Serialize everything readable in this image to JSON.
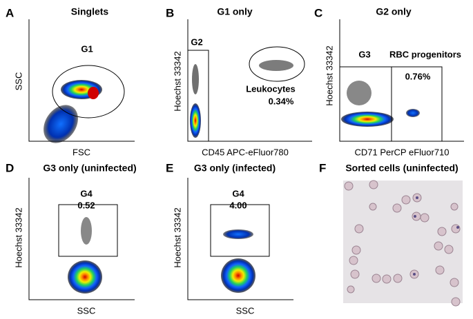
{
  "panels": [
    {
      "letter": "A",
      "title": "Singlets",
      "x_label": "FSC",
      "y_label": "SSC",
      "gates": [
        {
          "label": "G1"
        }
      ]
    },
    {
      "letter": "B",
      "title": "G1 only",
      "x_label": "CD45 APC-eFluor780",
      "y_label": "Hoechst 33342",
      "gates": [
        {
          "label": "G2"
        },
        {
          "label": "Leukocytes",
          "percent": "0.34%"
        }
      ]
    },
    {
      "letter": "C",
      "title": "G2 only",
      "x_label": "CD71 PerCP eFluor710",
      "y_label": "Hoechst 33342",
      "gates": [
        {
          "label": "G3"
        },
        {
          "label": "RBC progenitors",
          "percent": "0.76%"
        }
      ]
    },
    {
      "letter": "D",
      "title": "G3 only (uninfected)",
      "x_label": "SSC",
      "y_label": "Hoechst 33342",
      "gates": [
        {
          "label": "G4",
          "percent": "0.52"
        }
      ]
    },
    {
      "letter": "E",
      "title": "G3 only (infected)",
      "x_label": "SSC",
      "y_label": "Hoechst 33342",
      "gates": [
        {
          "label": "G4",
          "percent": "4.00"
        }
      ]
    },
    {
      "letter": "F",
      "title": "Sorted cells  (uninfected)"
    }
  ]
}
